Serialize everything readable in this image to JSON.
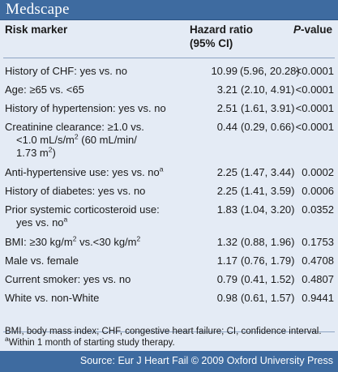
{
  "brand": {
    "logo": "Medscape"
  },
  "table": {
    "header": {
      "risk_marker": "Risk marker",
      "hazard_ratio_line1": "Hazard ratio",
      "hazard_ratio_line2": "(95% CI)",
      "p_value_italic": "P",
      "p_value_rest": "-value"
    },
    "rows": [
      {
        "marker": "History of CHF: yes vs. no",
        "hr": "10.99",
        "ci": "(5.96, 20.28)",
        "p": "<0.0001"
      },
      {
        "marker_a": "Age: ≥65 vs. <65",
        "hr": "3.21",
        "ci": "(2.10, 4.91)",
        "p": "<0.0001"
      },
      {
        "marker": "History of hypertension: yes vs. no",
        "hr": "2.51",
        "ci": "(1.61, 3.91)",
        "p": "<0.0001"
      },
      {
        "marker_line1": "Creatinine clearance: ≥1.0 vs.",
        "marker_line2a": "<1.0 mL/s/m",
        "marker_line2_sup": "2",
        "marker_line2b": " (60 mL/min/",
        "marker_line3a": "1.73 m",
        "marker_line3_sup": "2",
        "marker_line3b": ")",
        "hr": "0.44",
        "ci": "(0.29, 0.66)",
        "p": "<0.0001"
      },
      {
        "marker": "Anti-hypertensive use: yes vs. no",
        "marker_sup": "a",
        "hr": "2.25",
        "ci": "(1.47, 3.44)",
        "p": "0.0002"
      },
      {
        "marker": "History of diabetes: yes vs. no",
        "hr": "2.25",
        "ci": "(1.41, 3.59)",
        "p": "0.0006"
      },
      {
        "marker_line1": "Prior systemic corticosteroid use:",
        "marker_line2": "yes vs. no",
        "marker_sup": "a",
        "hr": "1.83",
        "ci": "(1.04, 3.20)",
        "p": "0.0352"
      },
      {
        "marker_a": "BMI: ≥30 kg/m",
        "marker_sup1": "2",
        "marker_b": " vs.<30 kg/m",
        "marker_sup2": "2",
        "hr": "1.32",
        "ci": "(0.88, 1.96)",
        "p": "0.1753"
      },
      {
        "marker": "Male vs. female",
        "hr": "1.17",
        "ci": "(0.76, 1.79)",
        "p": "0.4708"
      },
      {
        "marker": "Current smoker: yes vs. no",
        "hr": "0.79",
        "ci": "(0.41, 1.52)",
        "p": "0.4807"
      },
      {
        "marker": "White vs. non-White",
        "hr": "0.98",
        "ci": "(0.61, 1.57)",
        "p": "0.9441"
      }
    ],
    "footnotes": {
      "abbreviations": "BMI, body mass index; CHF, congestive heart failure; CI, confidence interval.",
      "a_marker": "a",
      "a_text": "Within 1 month of starting study therapy."
    }
  },
  "source": {
    "text": "Source: Eur J Heart Fail © 2009 Oxford University Press"
  },
  "colors": {
    "brand_bar": "#3e6ba0",
    "panel": "#e4ebf5",
    "rule": "#8ea4c3"
  }
}
